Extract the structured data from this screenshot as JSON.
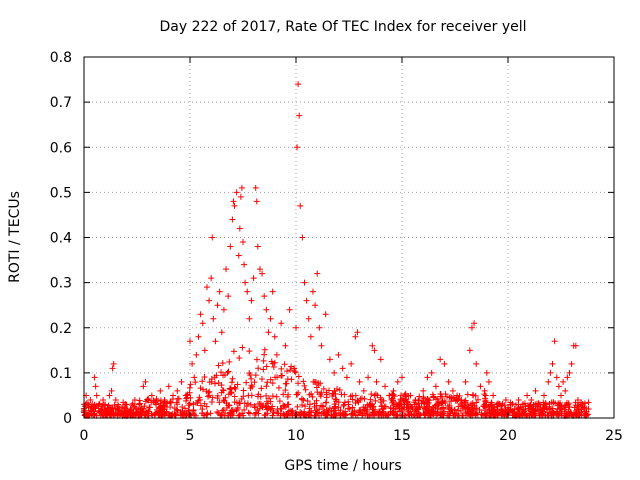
{
  "chart_data": {
    "type": "scatter",
    "title": "Day 222 of 2017, Rate Of TEC Index for receiver yell",
    "xlabel": "GPS time / hours",
    "ylabel": "ROTI / TECUs",
    "xlim": [
      0,
      25
    ],
    "ylim": [
      0,
      0.8
    ],
    "x_ticks": [
      "0",
      "5",
      "10",
      "15",
      "20",
      "25"
    ],
    "y_ticks": [
      "0",
      "0.1",
      "0.2",
      "0.3",
      "0.4",
      "0.5",
      "0.6",
      "0.7",
      "0.8"
    ],
    "grid": true,
    "marker": "+",
    "color": "#ff0000",
    "series": [
      {
        "name": "ROTI",
        "points": [
          [
            0.0,
            0.02
          ],
          [
            0.1,
            0.05
          ],
          [
            0.2,
            0.03
          ],
          [
            0.3,
            0.04
          ],
          [
            0.4,
            0.02
          ],
          [
            0.5,
            0.09
          ],
          [
            0.55,
            0.07
          ],
          [
            0.6,
            0.05
          ],
          [
            0.7,
            0.03
          ],
          [
            0.8,
            0.02
          ],
          [
            0.9,
            0.04
          ],
          [
            1.0,
            0.03
          ],
          [
            1.1,
            0.02
          ],
          [
            1.2,
            0.05
          ],
          [
            1.3,
            0.06
          ],
          [
            1.35,
            0.11
          ],
          [
            1.4,
            0.12
          ],
          [
            1.5,
            0.04
          ],
          [
            1.6,
            0.03
          ],
          [
            1.8,
            0.02
          ],
          [
            2.0,
            0.03
          ],
          [
            2.2,
            0.02
          ],
          [
            2.4,
            0.04
          ],
          [
            2.6,
            0.03
          ],
          [
            2.8,
            0.07
          ],
          [
            2.9,
            0.08
          ],
          [
            3.0,
            0.04
          ],
          [
            3.2,
            0.05
          ],
          [
            3.4,
            0.03
          ],
          [
            3.6,
            0.06
          ],
          [
            3.8,
            0.04
          ],
          [
            4.0,
            0.07
          ],
          [
            4.2,
            0.05
          ],
          [
            4.4,
            0.06
          ],
          [
            4.6,
            0.08
          ],
          [
            4.8,
            0.05
          ],
          [
            5.0,
            0.17
          ],
          [
            5.1,
            0.12
          ],
          [
            5.2,
            0.09
          ],
          [
            5.3,
            0.14
          ],
          [
            5.4,
            0.18
          ],
          [
            5.5,
            0.23
          ],
          [
            5.6,
            0.21
          ],
          [
            5.7,
            0.15
          ],
          [
            5.8,
            0.29
          ],
          [
            5.9,
            0.26
          ],
          [
            6.0,
            0.31
          ],
          [
            6.05,
            0.4
          ],
          [
            6.1,
            0.22
          ],
          [
            6.2,
            0.17
          ],
          [
            6.3,
            0.25
          ],
          [
            6.4,
            0.28
          ],
          [
            6.5,
            0.19
          ],
          [
            6.6,
            0.24
          ],
          [
            6.7,
            0.33
          ],
          [
            6.8,
            0.27
          ],
          [
            6.9,
            0.38
          ],
          [
            7.0,
            0.44
          ],
          [
            7.05,
            0.48
          ],
          [
            7.1,
            0.47
          ],
          [
            7.2,
            0.5
          ],
          [
            7.3,
            0.36
          ],
          [
            7.35,
            0.42
          ],
          [
            7.4,
            0.49
          ],
          [
            7.45,
            0.51
          ],
          [
            7.5,
            0.39
          ],
          [
            7.55,
            0.34
          ],
          [
            7.6,
            0.3
          ],
          [
            7.7,
            0.28
          ],
          [
            7.8,
            0.22
          ],
          [
            7.9,
            0.26
          ],
          [
            8.0,
            0.31
          ],
          [
            8.1,
            0.51
          ],
          [
            8.15,
            0.48
          ],
          [
            8.2,
            0.38
          ],
          [
            8.3,
            0.33
          ],
          [
            8.4,
            0.32
          ],
          [
            8.5,
            0.27
          ],
          [
            8.6,
            0.24
          ],
          [
            8.7,
            0.19
          ],
          [
            8.8,
            0.22
          ],
          [
            8.9,
            0.28
          ],
          [
            9.0,
            0.18
          ],
          [
            9.1,
            0.14
          ],
          [
            9.3,
            0.21
          ],
          [
            9.5,
            0.16
          ],
          [
            9.7,
            0.24
          ],
          [
            9.9,
            0.11
          ],
          [
            10.0,
            0.2
          ],
          [
            10.05,
            0.6
          ],
          [
            10.1,
            0.74
          ],
          [
            10.15,
            0.67
          ],
          [
            10.2,
            0.47
          ],
          [
            10.3,
            0.4
          ],
          [
            10.4,
            0.3
          ],
          [
            10.5,
            0.26
          ],
          [
            10.6,
            0.22
          ],
          [
            10.7,
            0.18
          ],
          [
            10.8,
            0.28
          ],
          [
            10.9,
            0.25
          ],
          [
            11.0,
            0.32
          ],
          [
            11.1,
            0.2
          ],
          [
            11.2,
            0.16
          ],
          [
            11.4,
            0.23
          ],
          [
            11.6,
            0.13
          ],
          [
            11.8,
            0.1
          ],
          [
            12.0,
            0.14
          ],
          [
            12.2,
            0.11
          ],
          [
            12.4,
            0.09
          ],
          [
            12.6,
            0.12
          ],
          [
            12.8,
            0.18
          ],
          [
            12.9,
            0.19
          ],
          [
            13.0,
            0.08
          ],
          [
            13.2,
            0.06
          ],
          [
            13.4,
            0.09
          ],
          [
            13.6,
            0.16
          ],
          [
            13.7,
            0.15
          ],
          [
            13.8,
            0.08
          ],
          [
            14.0,
            0.13
          ],
          [
            14.2,
            0.07
          ],
          [
            14.4,
            0.05
          ],
          [
            14.6,
            0.06
          ],
          [
            14.8,
            0.08
          ],
          [
            15.0,
            0.09
          ],
          [
            15.2,
            0.04
          ],
          [
            15.4,
            0.05
          ],
          [
            15.6,
            0.03
          ],
          [
            15.8,
            0.04
          ],
          [
            16.0,
            0.06
          ],
          [
            16.2,
            0.09
          ],
          [
            16.4,
            0.1
          ],
          [
            16.6,
            0.07
          ],
          [
            16.8,
            0.13
          ],
          [
            17.0,
            0.12
          ],
          [
            17.2,
            0.08
          ],
          [
            17.4,
            0.06
          ],
          [
            17.6,
            0.05
          ],
          [
            17.8,
            0.04
          ],
          [
            18.0,
            0.08
          ],
          [
            18.2,
            0.15
          ],
          [
            18.3,
            0.2
          ],
          [
            18.4,
            0.21
          ],
          [
            18.5,
            0.12
          ],
          [
            18.7,
            0.07
          ],
          [
            18.9,
            0.06
          ],
          [
            19.0,
            0.1
          ],
          [
            19.1,
            0.08
          ],
          [
            19.3,
            0.05
          ],
          [
            19.5,
            0.03
          ],
          [
            19.7,
            0.02
          ],
          [
            19.9,
            0.04
          ],
          [
            20.1,
            0.03
          ],
          [
            20.3,
            0.02
          ],
          [
            20.5,
            0.04
          ],
          [
            20.7,
            0.03
          ],
          [
            20.9,
            0.05
          ],
          [
            21.1,
            0.04
          ],
          [
            21.3,
            0.06
          ],
          [
            21.5,
            0.03
          ],
          [
            21.7,
            0.05
          ],
          [
            21.9,
            0.08
          ],
          [
            22.0,
            0.1
          ],
          [
            22.1,
            0.12
          ],
          [
            22.2,
            0.17
          ],
          [
            22.3,
            0.09
          ],
          [
            22.4,
            0.07
          ],
          [
            22.5,
            0.05
          ],
          [
            22.6,
            0.08
          ],
          [
            22.7,
            0.06
          ],
          [
            22.8,
            0.09
          ],
          [
            22.9,
            0.1
          ],
          [
            23.0,
            0.12
          ],
          [
            23.1,
            0.16
          ],
          [
            23.2,
            0.16
          ],
          [
            23.3,
            0.04
          ],
          [
            23.4,
            0.03
          ],
          [
            23.6,
            0.02
          ],
          [
            23.8,
            0.02
          ]
        ]
      }
    ]
  }
}
